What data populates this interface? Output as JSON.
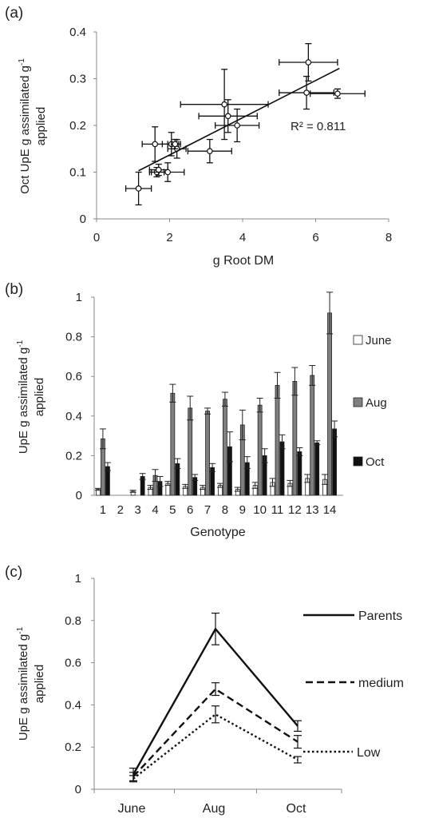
{
  "panels": {
    "a": "(a)",
    "b": "(b)",
    "c": "(c)"
  },
  "chart_data": [
    {
      "type": "scatter",
      "panel": "(a)",
      "xlabel": "g Root DM",
      "ylabel_line1": "Oct UpE g assimilated g",
      "ylabel_sup": "-1",
      "ylabel_line2": "applied",
      "xlim": [
        0,
        8
      ],
      "ylim": [
        0,
        0.4
      ],
      "xticks": [
        0,
        2,
        4,
        6,
        8
      ],
      "yticks": [
        0,
        0.1,
        0.2,
        0.3,
        0.4
      ],
      "annotation": "R² = 0.811",
      "trendline": {
        "x": [
          1.15,
          6.65
        ],
        "y": [
          0.103,
          0.322
        ]
      },
      "points": [
        {
          "x": 1.15,
          "y": 0.065,
          "xerr": 0.35,
          "yerr": 0.035
        },
        {
          "x": 1.6,
          "y": 0.16,
          "xerr": 0.35,
          "yerr": 0.037
        },
        {
          "x": 1.65,
          "y": 0.1,
          "xerr": 0.2,
          "yerr": 0.01
        },
        {
          "x": 1.7,
          "y": 0.105,
          "xerr": 0.25,
          "yerr": 0.012
        },
        {
          "x": 1.95,
          "y": 0.1,
          "xerr": 0.45,
          "yerr": 0.02
        },
        {
          "x": 2.05,
          "y": 0.16,
          "xerr": 0.25,
          "yerr": 0.025
        },
        {
          "x": 2.2,
          "y": 0.15,
          "xerr": 0.25,
          "yerr": 0.02
        },
        {
          "x": 2.15,
          "y": 0.16,
          "xerr": 0.1,
          "yerr": 0.01
        },
        {
          "x": 3.1,
          "y": 0.145,
          "xerr": 0.6,
          "yerr": 0.025
        },
        {
          "x": 3.5,
          "y": 0.245,
          "xerr": 1.2,
          "yerr": 0.075
        },
        {
          "x": 3.6,
          "y": 0.22,
          "xerr": 0.8,
          "yerr": 0.035
        },
        {
          "x": 3.85,
          "y": 0.2,
          "xerr": 0.6,
          "yerr": 0.035
        },
        {
          "x": 5.8,
          "y": 0.335,
          "xerr": 0.8,
          "yerr": 0.04
        },
        {
          "x": 5.75,
          "y": 0.27,
          "xerr": 0.75,
          "yerr": 0.035
        },
        {
          "x": 6.6,
          "y": 0.268,
          "xerr": 0.75,
          "yerr": 0.01
        }
      ]
    },
    {
      "type": "bar",
      "panel": "(b)",
      "xlabel": "Genotype",
      "ylabel_line1": "UpE g assimilated  g",
      "ylabel_sup": "-1",
      "ylabel_line2": "applied",
      "ylim": [
        0,
        1
      ],
      "yticks": [
        0,
        0.2,
        0.4,
        0.6,
        0.8,
        1
      ],
      "categories": [
        "1",
        "2",
        "3",
        "4",
        "5",
        "6",
        "7",
        "8",
        "9",
        "10",
        "11",
        "12",
        "13",
        "14"
      ],
      "series": [
        {
          "name": "June",
          "color": "#ffffff",
          "values": [
            0.03,
            0,
            0.02,
            0.04,
            0.06,
            0.045,
            0.04,
            0.05,
            0.03,
            0.05,
            0.065,
            0.06,
            0.085,
            0.08
          ],
          "errors": [
            0.005,
            0,
            0.005,
            0.01,
            0.01,
            0.01,
            0.01,
            0.01,
            0.01,
            0.015,
            0.02,
            0.015,
            0.02,
            0.025
          ]
        },
        {
          "name": "Aug",
          "color": "#7f7f7f",
          "values": [
            0.285,
            0,
            0,
            0.1,
            0.515,
            0.44,
            0.425,
            0.485,
            0.355,
            0.455,
            0.555,
            0.575,
            0.605,
            0.92
          ],
          "errors": [
            0.05,
            0,
            0,
            0.03,
            0.045,
            0.06,
            0.015,
            0.035,
            0.075,
            0.035,
            0.065,
            0.07,
            0.05,
            0.105
          ]
        },
        {
          "name": "Oct",
          "color": "#111111",
          "values": [
            0.145,
            0,
            0.095,
            0.07,
            0.16,
            0.09,
            0.14,
            0.245,
            0.165,
            0.2,
            0.27,
            0.22,
            0.265,
            0.335
          ],
          "errors": [
            0.02,
            0,
            0.015,
            0.025,
            0.025,
            0.015,
            0.02,
            0.075,
            0.03,
            0.035,
            0.035,
            0.02,
            0.01,
            0.04
          ]
        }
      ]
    },
    {
      "type": "line",
      "panel": "(c)",
      "ylabel_line1": "UpE g assimilated g",
      "ylabel_sup": "-1",
      "ylabel_line2": "applied",
      "ylim": [
        0,
        1
      ],
      "yticks": [
        0,
        0.2,
        0.4,
        0.6,
        0.8,
        1
      ],
      "categories": [
        "June",
        "Aug",
        "Oct"
      ],
      "series": [
        {
          "name": "Parents",
          "dash": "solid",
          "values": [
            0.07,
            0.76,
            0.3
          ],
          "errors": [
            0.03,
            0.075,
            0.025
          ]
        },
        {
          "name": "medium",
          "dash": "dashed",
          "values": [
            0.06,
            0.475,
            0.225
          ],
          "errors": [
            0.02,
            0.03,
            0.03
          ]
        },
        {
          "name": "Low",
          "dash": "dotted",
          "values": [
            0.05,
            0.355,
            0.14
          ],
          "errors": [
            0.015,
            0.04,
            0.015
          ]
        }
      ]
    }
  ]
}
